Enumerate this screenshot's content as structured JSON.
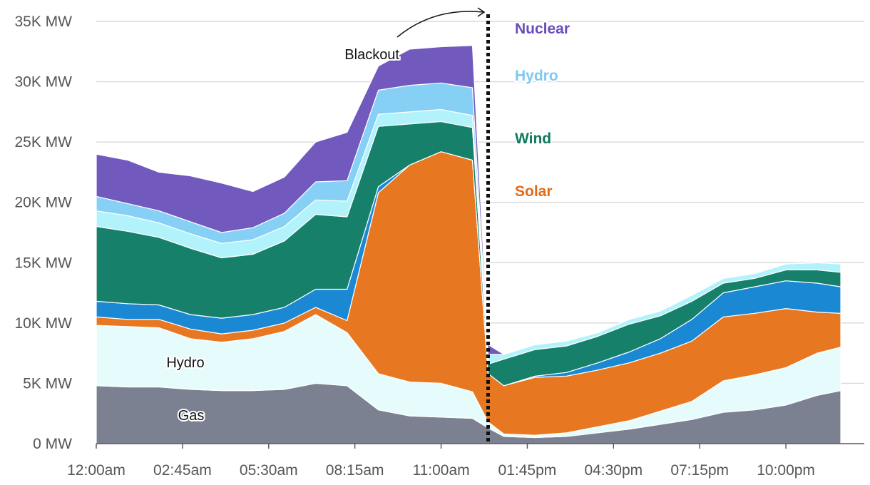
{
  "chart_data": {
    "type": "area",
    "stacked": true,
    "grid": true,
    "y_unit": "MW",
    "ylim": [
      0,
      35000
    ],
    "y_ticks": [
      {
        "value": 0,
        "label": "0 MW"
      },
      {
        "value": 5000,
        "label": "5K MW"
      },
      {
        "value": 10000,
        "label": "10K MW"
      },
      {
        "value": 15000,
        "label": "15K MW"
      },
      {
        "value": 20000,
        "label": "20K MW"
      },
      {
        "value": 25000,
        "label": "25K MW"
      },
      {
        "value": 30000,
        "label": "30K MW"
      },
      {
        "value": 35000,
        "label": "35K MW"
      }
    ],
    "x_ticks": [
      "12:00am",
      "02:45am",
      "05:30am",
      "08:15am",
      "11:00am",
      "01:45pm",
      "04:30pm",
      "07:15pm",
      "10:00pm"
    ],
    "x": [
      "00:00",
      "01:00",
      "02:00",
      "03:00",
      "04:00",
      "05:00",
      "06:00",
      "07:00",
      "08:00",
      "09:00",
      "10:00",
      "11:00",
      "12:00",
      "12:30",
      "13:00",
      "14:00",
      "15:00",
      "16:00",
      "17:00",
      "18:00",
      "19:00",
      "20:00",
      "21:00",
      "22:00",
      "23:00",
      "23:45"
    ],
    "series": [
      {
        "name": "Gas",
        "color": "#7b8190",
        "values": [
          4800,
          4700,
          4700,
          4500,
          4400,
          4400,
          4500,
          5000,
          4800,
          2800,
          2300,
          2200,
          2100,
          1300,
          600,
          500,
          600,
          900,
          1200,
          1600,
          2000,
          2600,
          2800,
          3200,
          4000,
          4400
        ]
      },
      {
        "name": "Hydro",
        "color": "#e6fcfc",
        "values": [
          5000,
          5000,
          4900,
          4200,
          4000,
          4300,
          4800,
          5700,
          4400,
          3000,
          2800,
          2800,
          2200,
          500,
          200,
          200,
          300,
          500,
          700,
          1100,
          1500,
          2600,
          2900,
          3100,
          3500,
          3600
        ]
      },
      {
        "name": "",
        "color": "#e87722",
        "values": [
          700,
          600,
          700,
          800,
          700,
          700,
          700,
          600,
          1000,
          15000,
          18000,
          19200,
          19200,
          4000,
          4000,
          4800,
          4700,
          4700,
          4800,
          4800,
          5000,
          5300,
          5100,
          4900,
          3400,
          2800
        ]
      },
      {
        "name": "",
        "color": "#1b88d4",
        "values": [
          1300,
          1300,
          1200,
          1200,
          1300,
          1300,
          1300,
          1500,
          2600,
          500,
          0,
          0,
          0,
          0,
          0,
          100,
          300,
          600,
          900,
          1200,
          1800,
          2000,
          2200,
          2300,
          2400,
          2200
        ]
      },
      {
        "name": "",
        "color": "#16806a",
        "values": [
          6200,
          6000,
          5600,
          5500,
          5000,
          5000,
          5500,
          6200,
          6000,
          5000,
          3400,
          2500,
          2700,
          800,
          2200,
          2200,
          2200,
          2200,
          2300,
          1900,
          1500,
          800,
          700,
          900,
          1100,
          1200
        ]
      },
      {
        "name": "",
        "color": "#b2f2fb",
        "values": [
          1300,
          1300,
          1200,
          1200,
          1200,
          1200,
          1200,
          1200,
          1300,
          1000,
          1000,
          1000,
          1000,
          800,
          400,
          400,
          400,
          300,
          400,
          400,
          500,
          400,
          400,
          500,
          600,
          700
        ]
      },
      {
        "name": "",
        "color": "#86cff5",
        "values": [
          1200,
          1000,
          1000,
          1000,
          900,
          1000,
          1100,
          1500,
          1700,
          2000,
          2200,
          2200,
          2300,
          0,
          0,
          0,
          0,
          0,
          0,
          0,
          0,
          0,
          0,
          0,
          0,
          0
        ]
      },
      {
        "name": "",
        "color": "#7159bd",
        "values": [
          3500,
          3600,
          3200,
          3800,
          4100,
          3000,
          3000,
          3300,
          4000,
          2000,
          3000,
          3000,
          3500,
          800,
          0,
          0,
          0,
          0,
          0,
          0,
          0,
          0,
          0,
          0,
          0,
          0
        ]
      }
    ],
    "series_labels": [
      {
        "text": "Nuclear",
        "color": "#6b4bbd"
      },
      {
        "text": "Hydro",
        "color": "#7dc9f0"
      },
      {
        "text": "Wind",
        "color": "#0d7a5f"
      },
      {
        "text": "Solar",
        "color": "#e26a12"
      }
    ],
    "inner_labels": [
      "Hydro",
      "Gas"
    ],
    "annotation": {
      "text": "Blackout",
      "x": "12:30"
    }
  }
}
